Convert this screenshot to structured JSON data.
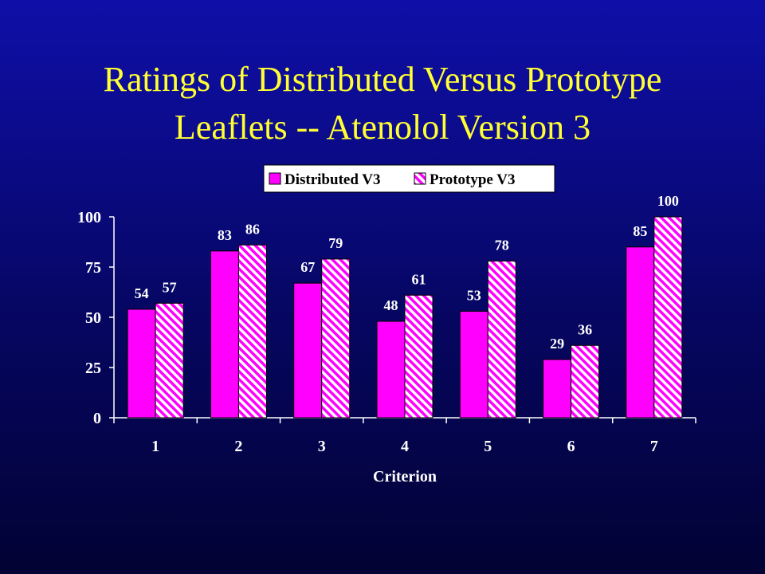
{
  "slide": {
    "title_line1": "Ratings of Distributed Versus Prototype",
    "title_line2": "Leaflets -- Atenolol Version 3"
  },
  "colors": {
    "title": "#ffff33",
    "distributed": "#ff00ff",
    "prototype_stripe": "#ff00ff",
    "prototype_bg": "#ffffff",
    "axis": "#ffffff"
  },
  "chart_data": {
    "type": "bar",
    "title": "",
    "xlabel": "Criterion",
    "ylabel": "",
    "categories": [
      "1",
      "2",
      "3",
      "4",
      "5",
      "6",
      "7"
    ],
    "series": [
      {
        "name": "Distributed V3",
        "values": [
          54,
          83,
          67,
          48,
          53,
          29,
          85
        ],
        "pattern": "solid"
      },
      {
        "name": "Prototype V3",
        "values": [
          57,
          86,
          79,
          61,
          78,
          36,
          100
        ],
        "pattern": "diagonal-stripes"
      }
    ],
    "ylim": [
      0,
      100
    ],
    "yticks": [
      "0",
      "25",
      "50",
      "75",
      "100"
    ],
    "grid": false,
    "legend": "top"
  }
}
